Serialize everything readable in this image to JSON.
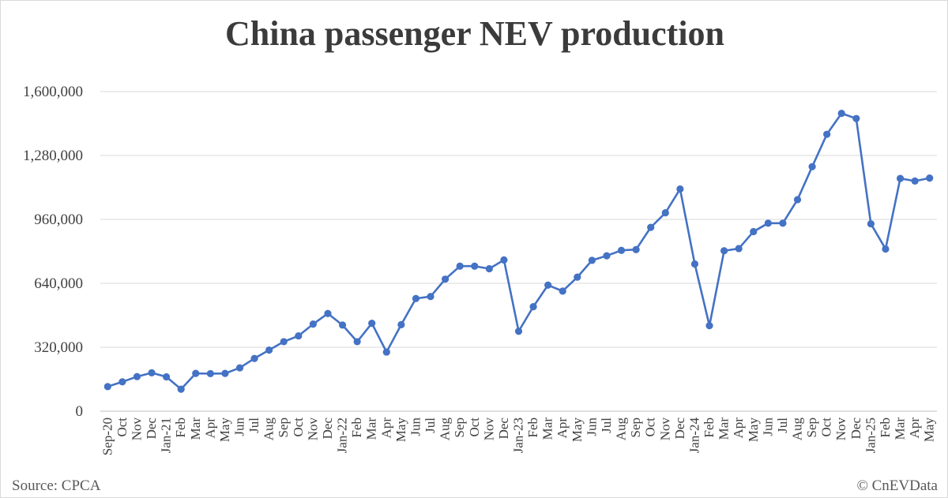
{
  "chart_data": {
    "type": "line",
    "title": "China passenger NEV production",
    "xlabel": "",
    "ylabel": "",
    "ylim": [
      0,
      1600000
    ],
    "yticks": [
      "0",
      "320,000",
      "640,000",
      "960,000",
      "1,280,000",
      "1,600,000"
    ],
    "grid": true,
    "legend": "none",
    "line_color": "#4472c4",
    "categories": [
      "Sep-20",
      "Oct",
      "Nov",
      "Dec",
      "Jan-21",
      "Feb",
      "Mar",
      "Apr",
      "May",
      "Jun",
      "Jul",
      "Aug",
      "Sep",
      "Oct",
      "Nov",
      "Dec",
      "Jan-22",
      "Feb",
      "Mar",
      "Apr",
      "May",
      "Jun",
      "Jul",
      "Aug",
      "Sep",
      "Oct",
      "Nov",
      "Dec",
      "Jan-23",
      "Feb",
      "Mar",
      "Apr",
      "May",
      "Jun",
      "Jul",
      "Aug",
      "Sep",
      "Oct",
      "Nov",
      "Dec",
      "Jan-24",
      "Feb",
      "Mar",
      "Apr",
      "May",
      "Jun",
      "Jul",
      "Aug",
      "Sep",
      "Oct",
      "Nov",
      "Dec",
      "Jan-25",
      "Feb",
      "Mar",
      "Apr",
      "May"
    ],
    "series": [
      {
        "values": [
          123000,
          147000,
          173000,
          192000,
          172000,
          110000,
          189000,
          188000,
          189000,
          217000,
          264000,
          306000,
          348000,
          377000,
          436000,
          489000,
          431000,
          348000,
          440000,
          296000,
          433000,
          564000,
          574000,
          661000,
          726000,
          726000,
          713000,
          757000,
          400000,
          523000,
          631000,
          601000,
          671000,
          755000,
          778000,
          805000,
          809000,
          920000,
          993000,
          1112000,
          737000,
          428000,
          803000,
          814000,
          899000,
          941000,
          941000,
          1059000,
          1224000,
          1386000,
          1491000,
          1465000,
          938000,
          812000,
          1165000,
          1152000,
          1167000
        ]
      }
    ]
  },
  "footer": {
    "source": "Source: CPCA",
    "copyright": "© CnEVData"
  }
}
